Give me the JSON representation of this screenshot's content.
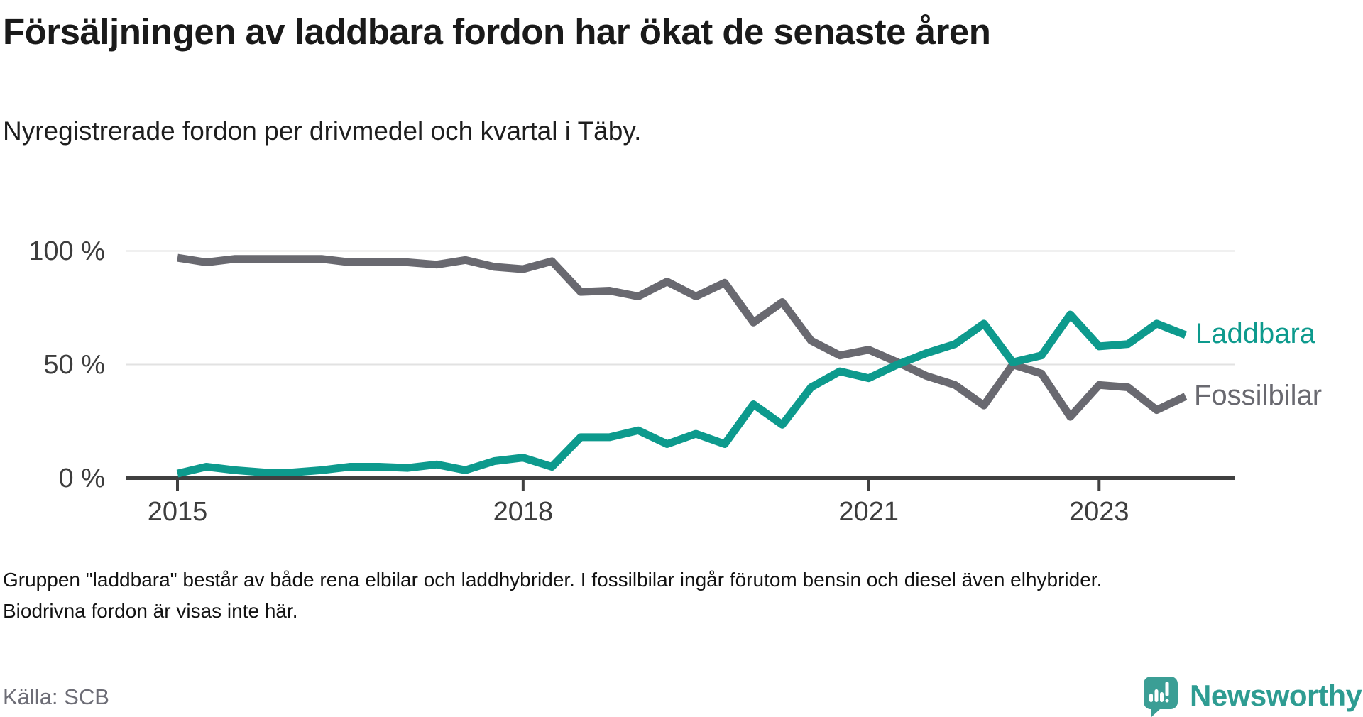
{
  "header": {
    "title": "Försäljningen av laddbara fordon har ökat de senaste åren",
    "subtitle": "Nyregistrerade fordon per drivmedel och kvartal i Täby."
  },
  "chart_data": {
    "type": "line",
    "unit": "%",
    "grid": "horizontal",
    "ylim": [
      0,
      100
    ],
    "legend_position": "end-of-line-right",
    "x": [
      "2015 Q1",
      "2015 Q2",
      "2015 Q3",
      "2015 Q4",
      "2016 Q1",
      "2016 Q2",
      "2016 Q3",
      "2016 Q4",
      "2017 Q1",
      "2017 Q2",
      "2017 Q3",
      "2017 Q4",
      "2018 Q1",
      "2018 Q2",
      "2018 Q3",
      "2018 Q4",
      "2019 Q1",
      "2019 Q2",
      "2019 Q3",
      "2019 Q4",
      "2020 Q1",
      "2020 Q2",
      "2020 Q3",
      "2020 Q4",
      "2021 Q1",
      "2021 Q2",
      "2021 Q3",
      "2021 Q4",
      "2022 Q1",
      "2022 Q2",
      "2022 Q3",
      "2022 Q4",
      "2023 Q1",
      "2023 Q2",
      "2023 Q3",
      "2023 Q4"
    ],
    "series": [
      {
        "name": "Laddbara",
        "color": "#0d9a8d",
        "values": [
          2,
          5,
          3.5,
          2.5,
          2.5,
          3.5,
          5,
          5,
          4.5,
          6,
          3.5,
          7.5,
          9,
          5,
          18,
          18,
          21,
          15,
          19.5,
          15,
          32.5,
          23.5,
          40,
          47,
          44,
          50,
          55,
          59,
          68,
          51,
          54,
          72,
          58,
          59,
          68,
          63
        ]
      },
      {
        "name": "Fossilbilar",
        "color": "#696970",
        "values": [
          97,
          95,
          96.5,
          96.5,
          96.5,
          96.5,
          95,
          95,
          95,
          94,
          96,
          93,
          92,
          95.5,
          82,
          82.5,
          80,
          86.5,
          80,
          86,
          68.5,
          77.5,
          60.5,
          54,
          56.5,
          51,
          45,
          41,
          32,
          50,
          46,
          27,
          41,
          40,
          30,
          36
        ]
      }
    ],
    "y_ticks": [
      {
        "value": 0,
        "label": "0 %"
      },
      {
        "value": 50,
        "label": "50 %"
      },
      {
        "value": 100,
        "label": "100 %"
      }
    ],
    "x_ticks": [
      {
        "index": 0,
        "label": "2015"
      },
      {
        "index": 12,
        "label": "2018"
      },
      {
        "index": 24,
        "label": "2021"
      },
      {
        "index": 32,
        "label": "2023"
      }
    ]
  },
  "footer": {
    "note": "Gruppen \"laddbara\" består av både rena elbilar och laddhybrider. I fossilbilar ingår förutom bensin och diesel även elhybrider. Biodrivna fordon är visas inte här.",
    "source": "Källa: SCB"
  },
  "branding": {
    "logo_text": "Newsworthy",
    "logo_text_color": "#2e9c92",
    "icon_color": "#3b9e95"
  },
  "style_colors": {
    "gridline": "#e2e2e2",
    "axis": "#404040",
    "axis_labels": "#3d3d3d"
  }
}
